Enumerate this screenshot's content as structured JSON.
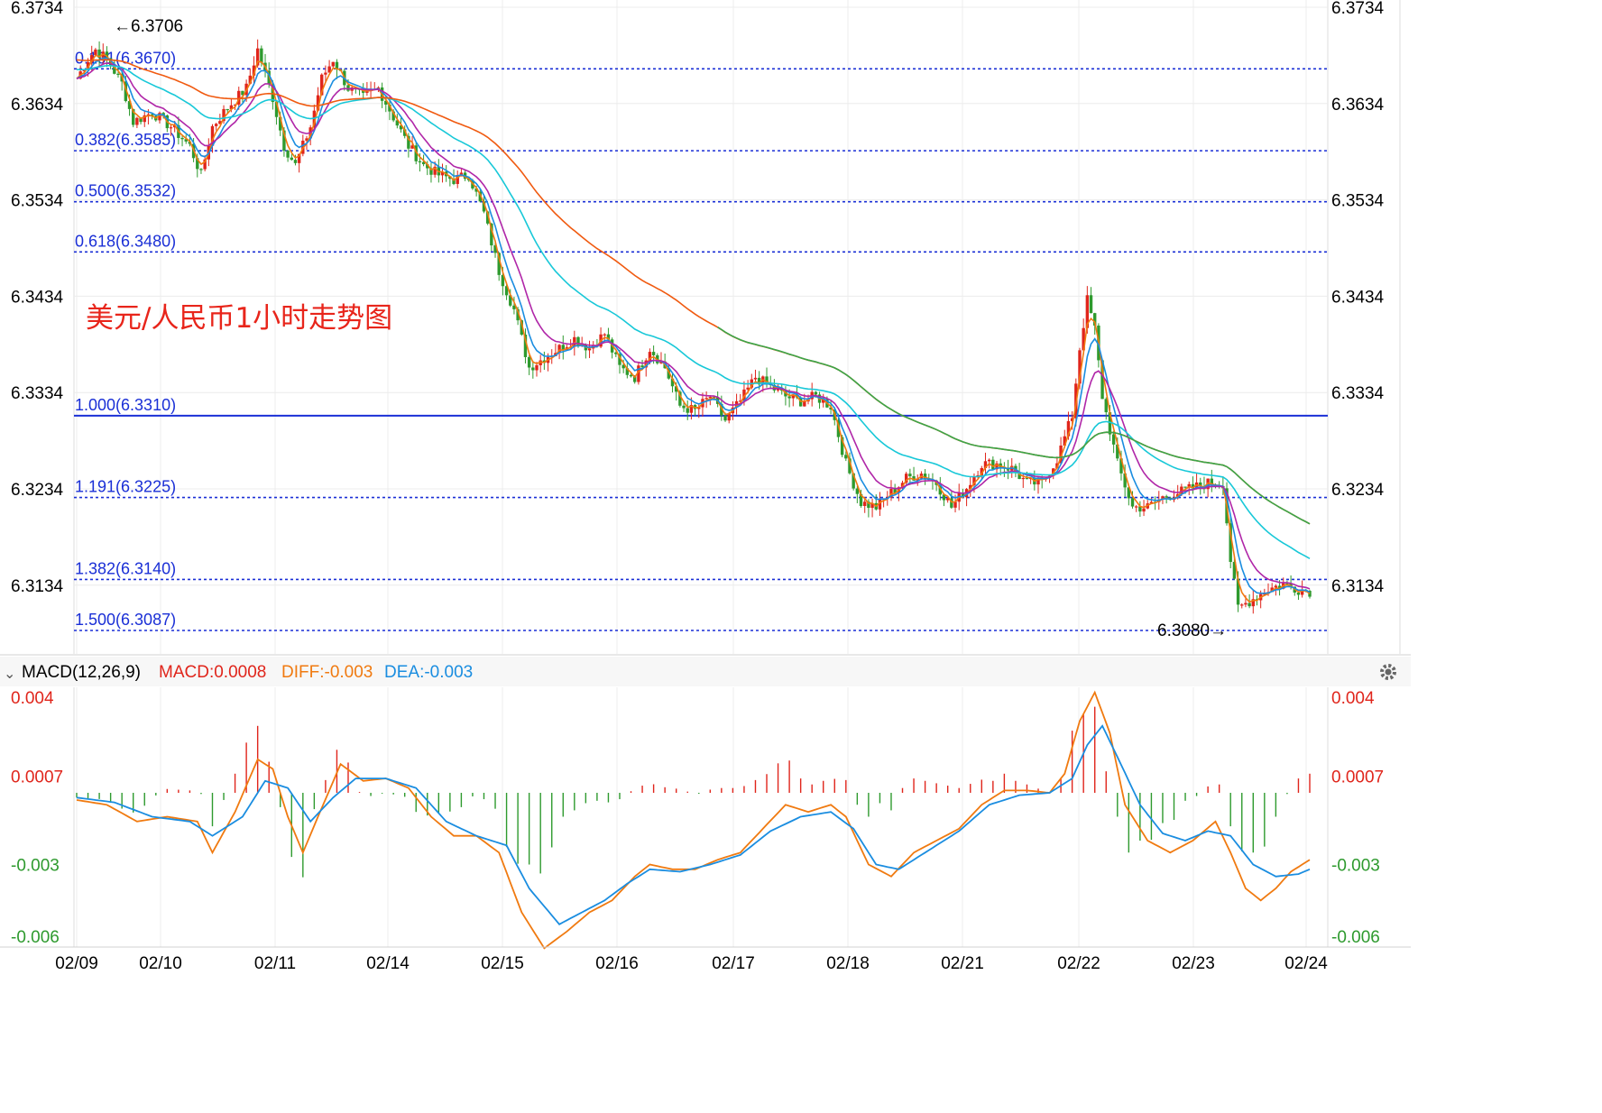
{
  "chart_data": {
    "type": "candlestick",
    "title": "美元/人民币1小时走势图",
    "ylim": [
      6.3034,
      6.3734
    ],
    "y_ticks": [
      "6.3734",
      "6.3634",
      "6.3534",
      "6.3434",
      "6.3334",
      "6.3234",
      "6.3134"
    ],
    "x_ticks": [
      "02/09",
      "02/10",
      "02/11",
      "02/14",
      "02/15",
      "02/16",
      "02/17",
      "02/18",
      "02/21",
      "02/22",
      "02/23",
      "02/24"
    ],
    "high_label": "←6.3706",
    "low_label": "6.3080→",
    "fib_levels": [
      {
        "label": "0.191(6.3670)",
        "value": 6.367,
        "style": "dotted"
      },
      {
        "label": "0.382(6.3585)",
        "value": 6.3585,
        "style": "dotted"
      },
      {
        "label": "0.500(6.3532)",
        "value": 6.3532,
        "style": "dotted"
      },
      {
        "label": "0.618(6.3480)",
        "value": 6.348,
        "style": "dotted"
      },
      {
        "label": "1.000(6.3310)",
        "value": 6.331,
        "style": "solid"
      },
      {
        "label": "1.191(6.3225)",
        "value": 6.3225,
        "style": "dotted"
      },
      {
        "label": "1.382(6.3140)",
        "value": 6.314,
        "style": "dotted"
      },
      {
        "label": "1.500(6.3087)",
        "value": 6.3087,
        "style": "dotted"
      }
    ],
    "price_path": [
      [
        0,
        6.366
      ],
      [
        3,
        6.368
      ],
      [
        5,
        6.369
      ],
      [
        8,
        6.368
      ],
      [
        12,
        6.3655
      ],
      [
        15,
        6.3615
      ],
      [
        20,
        6.3625
      ],
      [
        25,
        6.361
      ],
      [
        30,
        6.359
      ],
      [
        33,
        6.356
      ],
      [
        36,
        6.361
      ],
      [
        40,
        6.363
      ],
      [
        45,
        6.365
      ],
      [
        48,
        6.369
      ],
      [
        52,
        6.364
      ],
      [
        55,
        6.359
      ],
      [
        58,
        6.357
      ],
      [
        62,
        6.361
      ],
      [
        65,
        6.366
      ],
      [
        68,
        6.368
      ],
      [
        72,
        6.365
      ],
      [
        76,
        6.364
      ],
      [
        80,
        6.365
      ],
      [
        84,
        6.362
      ],
      [
        88,
        6.359
      ],
      [
        92,
        6.357
      ],
      [
        96,
        6.356
      ],
      [
        100,
        6.3555
      ],
      [
        104,
        6.356
      ],
      [
        108,
        6.352
      ],
      [
        112,
        6.346
      ],
      [
        116,
        6.342
      ],
      [
        120,
        6.336
      ],
      [
        124,
        6.337
      ],
      [
        128,
        6.338
      ],
      [
        132,
        6.339
      ],
      [
        136,
        6.338
      ],
      [
        140,
        6.3395
      ],
      [
        144,
        6.336
      ],
      [
        148,
        6.335
      ],
      [
        152,
        6.338
      ],
      [
        156,
        6.336
      ],
      [
        160,
        6.332
      ],
      [
        164,
        6.3315
      ],
      [
        168,
        6.333
      ],
      [
        172,
        6.3305
      ],
      [
        176,
        6.3325
      ],
      [
        180,
        6.335
      ],
      [
        184,
        6.334
      ],
      [
        188,
        6.333
      ],
      [
        192,
        6.3325
      ],
      [
        196,
        6.333
      ],
      [
        200,
        6.332
      ],
      [
        204,
        6.326
      ],
      [
        208,
        6.322
      ],
      [
        212,
        6.3215
      ],
      [
        216,
        6.323
      ],
      [
        220,
        6.3245
      ],
      [
        224,
        6.325
      ],
      [
        228,
        6.324
      ],
      [
        232,
        6.3215
      ],
      [
        236,
        6.3235
      ],
      [
        240,
        6.326
      ],
      [
        244,
        6.326
      ],
      [
        248,
        6.3255
      ],
      [
        252,
        6.324
      ],
      [
        256,
        6.324
      ],
      [
        260,
        6.3265
      ],
      [
        264,
        6.331
      ],
      [
        266,
        6.338
      ],
      [
        268,
        6.343
      ],
      [
        270,
        6.34
      ],
      [
        272,
        6.333
      ],
      [
        276,
        6.326
      ],
      [
        280,
        6.3215
      ],
      [
        284,
        6.3215
      ],
      [
        288,
        6.3225
      ],
      [
        292,
        6.323
      ],
      [
        296,
        6.3235
      ],
      [
        300,
        6.324
      ],
      [
        304,
        6.324
      ],
      [
        306,
        6.316
      ],
      [
        308,
        6.311
      ],
      [
        312,
        6.312
      ],
      [
        316,
        6.313
      ],
      [
        320,
        6.3135
      ],
      [
        324,
        6.313
      ],
      [
        327,
        6.3128
      ]
    ],
    "moving_averages": [
      {
        "color": "#f07a10",
        "period": 5
      },
      {
        "color": "#1a8de0",
        "period": 10
      },
      {
        "color": "#b026a8",
        "period": 20
      },
      {
        "color": "#18c8d8",
        "period": 60
      },
      {
        "color": "#f05a10",
        "period": 120
      },
      {
        "color": "#3aa64a",
        "period": 240
      }
    ],
    "macd": {
      "header_name": "MACD(12,26,9)",
      "header_macd": "MACD:0.0008",
      "header_diff": "DIFF:-0.003",
      "header_dea": "DEA:-0.003",
      "ylim": [
        -0.0062,
        0.0052
      ],
      "y_ticks": [
        "0.004",
        "0.0007",
        "-0.003",
        "-0.006"
      ],
      "diff_path": [
        [
          0,
          -0.0003
        ],
        [
          8,
          -0.0005
        ],
        [
          16,
          -0.0012
        ],
        [
          24,
          -0.001
        ],
        [
          32,
          -0.0012
        ],
        [
          36,
          -0.0025
        ],
        [
          42,
          -0.0008
        ],
        [
          48,
          0.0014
        ],
        [
          52,
          0.001
        ],
        [
          56,
          -0.001
        ],
        [
          60,
          -0.0025
        ],
        [
          64,
          -0.001
        ],
        [
          70,
          0.0012
        ],
        [
          76,
          0.0005
        ],
        [
          82,
          0.0006
        ],
        [
          88,
          0.0002
        ],
        [
          94,
          -0.001
        ],
        [
          100,
          -0.0018
        ],
        [
          106,
          -0.0018
        ],
        [
          112,
          -0.0025
        ],
        [
          118,
          -0.005
        ],
        [
          124,
          -0.0065
        ],
        [
          130,
          -0.0058
        ],
        [
          136,
          -0.005
        ],
        [
          142,
          -0.0045
        ],
        [
          148,
          -0.0035
        ],
        [
          152,
          -0.003
        ],
        [
          158,
          -0.0032
        ],
        [
          164,
          -0.0032
        ],
        [
          170,
          -0.0028
        ],
        [
          176,
          -0.0025
        ],
        [
          182,
          -0.0015
        ],
        [
          188,
          -0.0005
        ],
        [
          194,
          -0.0008
        ],
        [
          200,
          -0.0005
        ],
        [
          204,
          -0.001
        ],
        [
          210,
          -0.003
        ],
        [
          216,
          -0.0035
        ],
        [
          222,
          -0.0025
        ],
        [
          228,
          -0.002
        ],
        [
          234,
          -0.0015
        ],
        [
          240,
          -0.0005
        ],
        [
          246,
          0.0001
        ],
        [
          252,
          0.0001
        ],
        [
          258,
          0.0
        ],
        [
          262,
          0.0008
        ],
        [
          266,
          0.003
        ],
        [
          270,
          0.0042
        ],
        [
          274,
          0.0025
        ],
        [
          278,
          -0.0005
        ],
        [
          284,
          -0.002
        ],
        [
          290,
          -0.0025
        ],
        [
          296,
          -0.002
        ],
        [
          302,
          -0.0012
        ],
        [
          306,
          -0.0025
        ],
        [
          310,
          -0.004
        ],
        [
          314,
          -0.0045
        ],
        [
          318,
          -0.004
        ],
        [
          322,
          -0.0033
        ],
        [
          327,
          -0.0028
        ]
      ],
      "dea_path": [
        [
          0,
          -0.0002
        ],
        [
          10,
          -0.0004
        ],
        [
          20,
          -0.001
        ],
        [
          30,
          -0.0012
        ],
        [
          36,
          -0.0018
        ],
        [
          44,
          -0.001
        ],
        [
          50,
          0.0005
        ],
        [
          56,
          0.0002
        ],
        [
          62,
          -0.0012
        ],
        [
          68,
          -0.0002
        ],
        [
          74,
          0.0006
        ],
        [
          82,
          0.0006
        ],
        [
          90,
          0.0002
        ],
        [
          98,
          -0.0012
        ],
        [
          106,
          -0.0018
        ],
        [
          114,
          -0.0022
        ],
        [
          120,
          -0.004
        ],
        [
          128,
          -0.0055
        ],
        [
          134,
          -0.005
        ],
        [
          140,
          -0.0045
        ],
        [
          146,
          -0.0038
        ],
        [
          152,
          -0.0032
        ],
        [
          160,
          -0.0033
        ],
        [
          168,
          -0.003
        ],
        [
          176,
          -0.0026
        ],
        [
          184,
          -0.0016
        ],
        [
          192,
          -0.001
        ],
        [
          200,
          -0.0008
        ],
        [
          206,
          -0.0015
        ],
        [
          212,
          -0.003
        ],
        [
          218,
          -0.0032
        ],
        [
          226,
          -0.0024
        ],
        [
          234,
          -0.0016
        ],
        [
          242,
          -0.0005
        ],
        [
          250,
          -0.0001
        ],
        [
          258,
          0.0
        ],
        [
          264,
          0.0006
        ],
        [
          268,
          0.002
        ],
        [
          272,
          0.0028
        ],
        [
          276,
          0.0015
        ],
        [
          282,
          -0.0005
        ],
        [
          288,
          -0.0017
        ],
        [
          294,
          -0.002
        ],
        [
          300,
          -0.0016
        ],
        [
          306,
          -0.0018
        ],
        [
          312,
          -0.003
        ],
        [
          318,
          -0.0035
        ],
        [
          324,
          -0.0034
        ],
        [
          327,
          -0.0032
        ]
      ]
    }
  }
}
